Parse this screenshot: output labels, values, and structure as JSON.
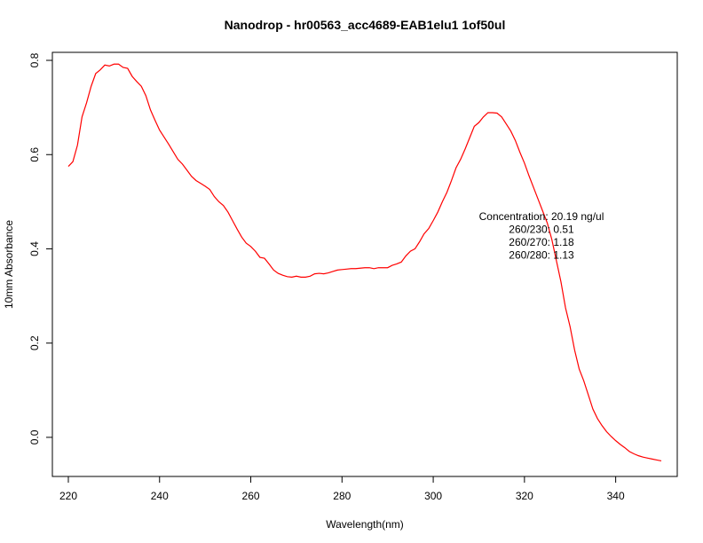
{
  "chart_data": {
    "type": "line",
    "title": "Nanodrop - hr00563_acc4689-EAB1elu1 1of50ul",
    "xlabel": "Wavelength(nm)",
    "ylabel": "10mm Absorbance",
    "xlim": [
      216.5,
      353.5
    ],
    "ylim": [
      -0.083,
      0.817
    ],
    "x_ticks": [
      220,
      240,
      260,
      280,
      300,
      320,
      340
    ],
    "x_tick_labels": [
      "220",
      "240",
      "260",
      "280",
      "300",
      "320",
      "340"
    ],
    "y_ticks": [
      0.0,
      0.2,
      0.4,
      0.6,
      0.8
    ],
    "y_tick_labels": [
      "0.0",
      "0.2",
      "0.4",
      "0.6",
      "0.8"
    ],
    "grid": false,
    "legend": "none",
    "series_color": "#ff0000",
    "annotations": [
      "Concentration: 20.19 ng/ul",
      "260/230: 0.51",
      "260/270: 1.18",
      "260/280: 1.13"
    ],
    "x": [
      220,
      221,
      222,
      223,
      224,
      225,
      226,
      227,
      228,
      229,
      230,
      231,
      232,
      233,
      234,
      235,
      236,
      237,
      238,
      239,
      240,
      241,
      242,
      243,
      244,
      245,
      246,
      247,
      248,
      249,
      250,
      251,
      252,
      253,
      254,
      255,
      256,
      257,
      258,
      259,
      260,
      261,
      262,
      263,
      264,
      265,
      266,
      267,
      268,
      269,
      270,
      271,
      272,
      273,
      274,
      275,
      276,
      277,
      278,
      279,
      280,
      281,
      282,
      283,
      284,
      285,
      286,
      287,
      288,
      289,
      290,
      291,
      292,
      293,
      294,
      295,
      296,
      297,
      298,
      299,
      300,
      301,
      302,
      303,
      304,
      305,
      306,
      307,
      308,
      309,
      310,
      311,
      312,
      313,
      314,
      315,
      316,
      317,
      318,
      319,
      320,
      321,
      322,
      323,
      324,
      325,
      326,
      327,
      328,
      329,
      330,
      331,
      332,
      333,
      334,
      335,
      336,
      337,
      338,
      339,
      340,
      341,
      342,
      343,
      344,
      345,
      346,
      347,
      348,
      349,
      350
    ],
    "y": [
      0.575,
      0.585,
      0.62,
      0.68,
      0.71,
      0.745,
      0.772,
      0.78,
      0.79,
      0.788,
      0.792,
      0.792,
      0.785,
      0.783,
      0.766,
      0.755,
      0.745,
      0.725,
      0.695,
      0.673,
      0.652,
      0.637,
      0.622,
      0.606,
      0.59,
      0.58,
      0.567,
      0.554,
      0.545,
      0.539,
      0.533,
      0.526,
      0.511,
      0.5,
      0.492,
      0.478,
      0.46,
      0.442,
      0.425,
      0.412,
      0.405,
      0.395,
      0.382,
      0.38,
      0.368,
      0.355,
      0.348,
      0.344,
      0.341,
      0.34,
      0.342,
      0.34,
      0.34,
      0.342,
      0.347,
      0.348,
      0.347,
      0.349,
      0.352,
      0.355,
      0.356,
      0.357,
      0.358,
      0.358,
      0.359,
      0.36,
      0.36,
      0.358,
      0.36,
      0.36,
      0.36,
      0.365,
      0.368,
      0.372,
      0.385,
      0.395,
      0.4,
      0.415,
      0.432,
      0.443,
      0.46,
      0.478,
      0.5,
      0.52,
      0.545,
      0.572,
      0.59,
      0.612,
      0.636,
      0.66,
      0.668,
      0.68,
      0.689,
      0.689,
      0.688,
      0.68,
      0.665,
      0.65,
      0.63,
      0.605,
      0.582,
      0.555,
      0.53,
      0.505,
      0.48,
      0.455,
      0.42,
      0.375,
      0.33,
      0.275,
      0.235,
      0.185,
      0.145,
      0.12,
      0.09,
      0.06,
      0.04,
      0.025,
      0.012,
      0.002,
      -0.007,
      -0.015,
      -0.022,
      -0.03,
      -0.035,
      -0.039,
      -0.042,
      -0.044,
      -0.046,
      -0.048,
      -0.05
    ]
  }
}
